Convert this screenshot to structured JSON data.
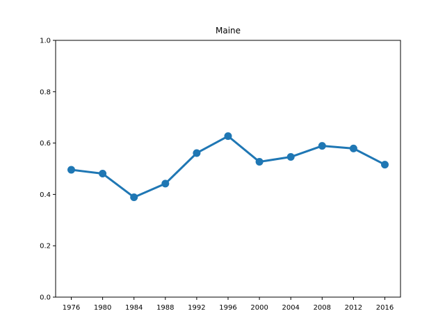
{
  "chart_data": {
    "type": "line",
    "title": "Maine",
    "xlabel": "",
    "ylabel": "",
    "categories": [
      "1976",
      "1980",
      "1984",
      "1988",
      "1992",
      "1996",
      "2000",
      "2004",
      "2008",
      "2012",
      "2016"
    ],
    "series": [
      {
        "values": [
          0.496,
          0.481,
          0.389,
          0.442,
          0.561,
          0.627,
          0.527,
          0.546,
          0.589,
          0.579,
          0.516
        ],
        "color": "#1f77b4"
      }
    ],
    "ylim": [
      0,
      1
    ],
    "yticks": [
      "0.0",
      "0.2",
      "0.4",
      "0.6",
      "0.8",
      "1.0"
    ],
    "grid": false,
    "legend": "none"
  }
}
